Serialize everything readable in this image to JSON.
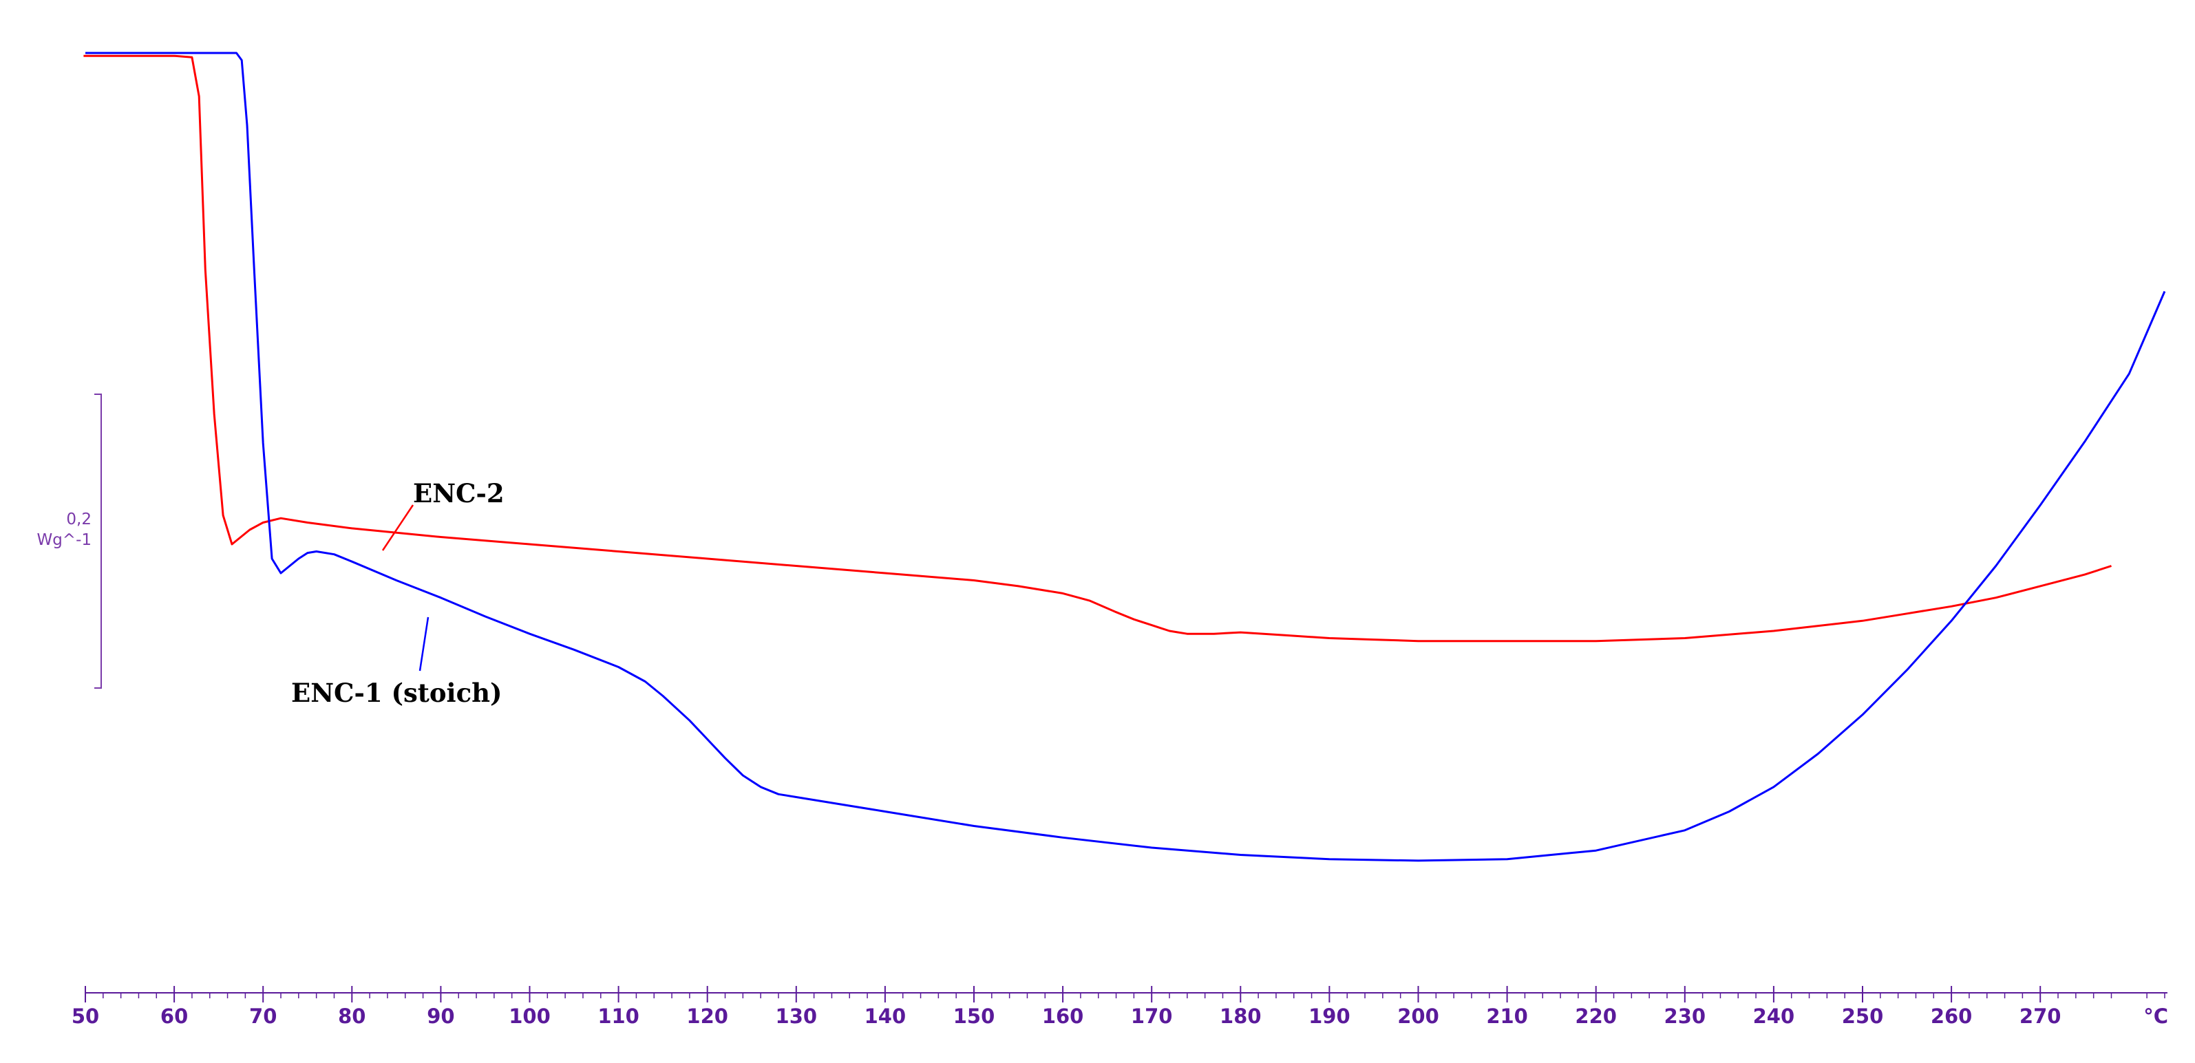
{
  "chart_data": {
    "type": "line",
    "title": "",
    "xlabel": "°C",
    "ylabel": "",
    "xlim": [
      50,
      284
    ],
    "x_ticks": [
      50,
      60,
      70,
      80,
      90,
      100,
      110,
      120,
      130,
      140,
      150,
      160,
      170,
      180,
      190,
      200,
      210,
      220,
      230,
      240,
      250,
      260,
      270
    ],
    "x_unit_label": "°C",
    "scale_bar": {
      "value": "0,2",
      "unit": "Wg^-1"
    },
    "colors": {
      "axis": "#5a1a9a",
      "scale_bar": "#7a3aaa",
      "ENC-2": "#ff0000",
      "ENC-1 (stoich)": "#0000ff"
    },
    "grid": false,
    "legend": "none",
    "annotations": [
      {
        "text": "ENC-2",
        "series": "ENC-2"
      },
      {
        "text": "ENC-1 (stoich)",
        "series": "ENC-1 (stoich)"
      }
    ],
    "series": [
      {
        "name": "ENC-2",
        "x": [
          49.8,
          55,
          60,
          62,
          62.8,
          63.5,
          64.5,
          65.5,
          66.5,
          67.5,
          68.5,
          70,
          72,
          75,
          80,
          90,
          100,
          110,
          120,
          130,
          140,
          150,
          155,
          160,
          163,
          166,
          168,
          170,
          171,
          172,
          173,
          174,
          175,
          177,
          180,
          185,
          190,
          195,
          200,
          210,
          220,
          230,
          240,
          250,
          255,
          260,
          265,
          270,
          275,
          278
        ],
        "y": [
          0.02,
          0.02,
          0.02,
          0.03,
          0.3,
          1.5,
          2.5,
          3.2,
          3.4,
          3.35,
          3.3,
          3.25,
          3.22,
          3.25,
          3.29,
          3.35,
          3.4,
          3.45,
          3.5,
          3.55,
          3.6,
          3.65,
          3.69,
          3.74,
          3.79,
          3.87,
          3.92,
          3.96,
          3.98,
          4.0,
          4.01,
          4.02,
          4.02,
          4.02,
          4.01,
          4.03,
          4.05,
          4.06,
          4.07,
          4.07,
          4.07,
          4.05,
          4.0,
          3.93,
          3.88,
          3.83,
          3.77,
          3.69,
          3.61,
          3.55
        ]
      },
      {
        "name": "ENC-1 (stoich)",
        "x": [
          50,
          55,
          60,
          65,
          67,
          67.6,
          68.2,
          69,
          70,
          71,
          72,
          73,
          74,
          75,
          76,
          78,
          80,
          85,
          90,
          95,
          100,
          105,
          110,
          113,
          115,
          118,
          120,
          122,
          124,
          126,
          128,
          130,
          135,
          140,
          150,
          160,
          170,
          180,
          190,
          200,
          210,
          220,
          230,
          235,
          240,
          245,
          250,
          255,
          260,
          265,
          270,
          275,
          280,
          284
        ],
        "y": [
          0.0,
          0.0,
          0.0,
          0.0,
          0.0,
          0.05,
          0.5,
          1.5,
          2.7,
          3.5,
          3.6,
          3.55,
          3.5,
          3.46,
          3.45,
          3.47,
          3.52,
          3.65,
          3.77,
          3.9,
          4.02,
          4.13,
          4.25,
          4.35,
          4.45,
          4.62,
          4.75,
          4.88,
          5.0,
          5.08,
          5.13,
          5.15,
          5.2,
          5.25,
          5.35,
          5.43,
          5.5,
          5.55,
          5.58,
          5.59,
          5.58,
          5.52,
          5.38,
          5.25,
          5.08,
          4.85,
          4.58,
          4.27,
          3.93,
          3.55,
          3.13,
          2.69,
          2.22,
          1.65
        ]
      }
    ]
  }
}
